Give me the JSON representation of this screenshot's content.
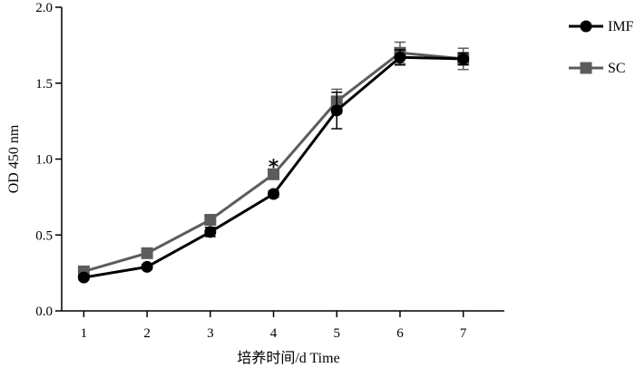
{
  "chart_data": {
    "type": "line",
    "title": "",
    "xlabel": "培养时间/d  Time",
    "ylabel": "OD 450 nm",
    "x": [
      1,
      2,
      3,
      4,
      5,
      6,
      7
    ],
    "xticks": [
      "1",
      "2",
      "3",
      "4",
      "5",
      "6",
      "7"
    ],
    "xlim": [
      0.65,
      7.65
    ],
    "ylim": [
      0,
      2.0
    ],
    "yticks": [
      "0.0",
      "0.5",
      "1.0",
      "1.5",
      "2.0"
    ],
    "grid": false,
    "legend_position": "top-right",
    "series": [
      {
        "name": "IMF",
        "marker": "circle",
        "color": "#000000",
        "values": [
          0.22,
          0.29,
          0.52,
          0.77,
          1.32,
          1.67,
          1.66
        ],
        "errors": [
          0.015,
          0.015,
          0.03,
          0.02,
          0.12,
          0.05,
          0.04
        ]
      },
      {
        "name": "SC",
        "marker": "square",
        "color": "#5c5c5c",
        "values": [
          0.26,
          0.38,
          0.6,
          0.9,
          1.38,
          1.7,
          1.66
        ],
        "errors": [
          0.015,
          0.02,
          0.02,
          0.025,
          0.08,
          0.07,
          0.07
        ]
      }
    ],
    "annotations": [
      {
        "text": "*",
        "x": 4,
        "y": 1.0
      }
    ]
  }
}
